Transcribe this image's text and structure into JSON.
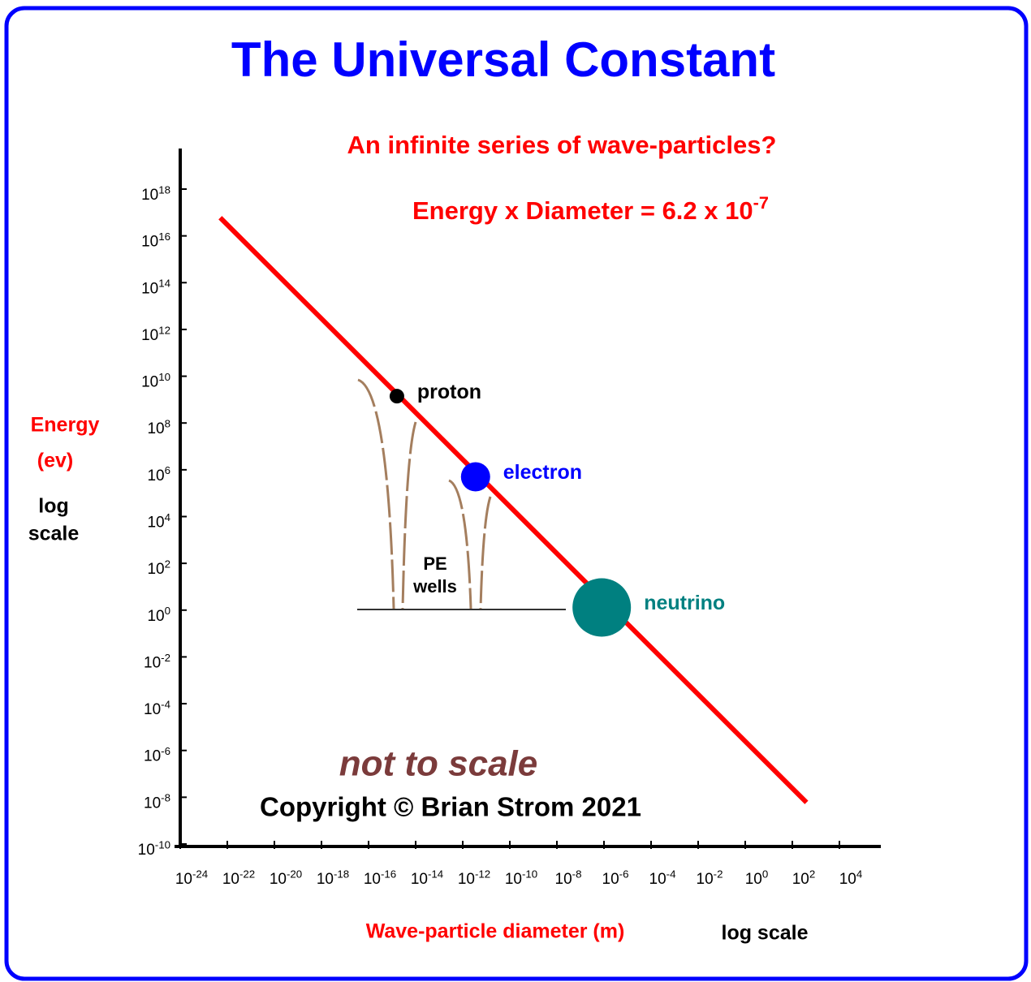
{
  "chart_data": {
    "type": "scatter",
    "title": "The Universal Constant",
    "subtitle": "An infinite series of wave-particles?",
    "formula": "Energy x Diameter =  6.2 x 10^-7",
    "y_label": "Energy",
    "y_unit": "(ev)",
    "y_scale_note": [
      "log",
      "scale"
    ],
    "x_label": "Wave-particle diameter (m)",
    "x_scale_note": "log scale",
    "note": "not to scale",
    "copyright": "Copyright  © Brian Strom 2021",
    "wells_label": [
      "PE",
      "wells"
    ],
    "log_x": true,
    "log_y": true,
    "xlim": [
      1e-24,
      10000.0
    ],
    "ylim": [
      1e-10,
      1e+18
    ],
    "xticks": [
      {
        "value": 1e-24,
        "label": "10^-24"
      },
      {
        "value": 1e-22,
        "label": "10^-22"
      },
      {
        "value": 1e-20,
        "label": "10^-20"
      },
      {
        "value": 1e-18,
        "label": "10^-18"
      },
      {
        "value": 1e-16,
        "label": "10^-16"
      },
      {
        "value": 1e-14,
        "label": "10^-14"
      },
      {
        "value": 1e-12,
        "label": "10^-12"
      },
      {
        "value": 1e-10,
        "label": "10^-10"
      },
      {
        "value": 1e-08,
        "label": "10^-8"
      },
      {
        "value": 1e-06,
        "label": "10^-6"
      },
      {
        "value": 0.0001,
        "label": "10^-4"
      },
      {
        "value": 0.01,
        "label": "10^-2"
      },
      {
        "value": 1,
        "label": "10^0"
      },
      {
        "value": 100,
        "label": "10^2"
      },
      {
        "value": 10000,
        "label": "10^4"
      }
    ],
    "yticks": [
      {
        "value": 1e+18,
        "label": "10^18"
      },
      {
        "value": 1e+16,
        "label": "10^16"
      },
      {
        "value": 100000000000000.0,
        "label": "10^14"
      },
      {
        "value": 1000000000000.0,
        "label": "10^12"
      },
      {
        "value": 10000000000.0,
        "label": "10^10"
      },
      {
        "value": 100000000.0,
        "label": "10^8"
      },
      {
        "value": 1000000.0,
        "label": "10^6"
      },
      {
        "value": 10000.0,
        "label": "10^4"
      },
      {
        "value": 100,
        "label": "10^2"
      },
      {
        "value": 1,
        "label": "10^0"
      },
      {
        "value": 0.01,
        "label": "10^-2"
      },
      {
        "value": 0.0001,
        "label": "10^-4"
      },
      {
        "value": 1e-06,
        "label": "10^-6"
      },
      {
        "value": 1e-08,
        "label": "10^-8"
      },
      {
        "value": 1e-10,
        "label": "10^-10"
      }
    ],
    "line": {
      "color": "#ff0000",
      "x": [
        5e-23,
        400
      ],
      "values": [
        6e+16,
        6e-09
      ]
    },
    "series": [
      {
        "name": "proton",
        "color": "#000000",
        "x": [
          1.6e-15
        ],
        "values": [
          1400000000.0
        ]
      },
      {
        "name": "electron",
        "color": "#0000ff",
        "x": [
          3.5e-12
        ],
        "values": [
          500000.0
        ]
      },
      {
        "name": "neutrino",
        "color": "#008080",
        "x": [
          8e-07
        ],
        "values": [
          1.3
        ]
      }
    ]
  }
}
